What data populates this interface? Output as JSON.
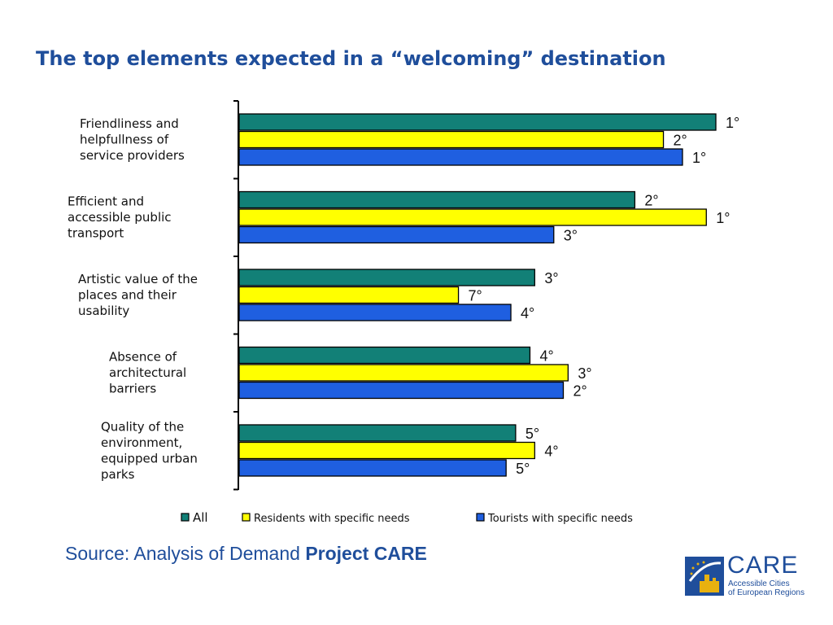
{
  "slide": {
    "title": "The top elements expected in a “welcoming” destination",
    "source_prefix": "Source: Analysis of Demand ",
    "source_bold": "Project CARE"
  },
  "logo": {
    "word": "CARE",
    "subtitle": "Accessible Cities\nof European Regions",
    "colors": {
      "blue": "#1f4e9b",
      "gold": "#e8b10f"
    }
  },
  "chart_data": {
    "type": "bar",
    "orientation": "horizontal",
    "categories": [
      [
        "Friendliness and",
        "helpfullness of",
        "service providers"
      ],
      [
        "Efficient and",
        "accessible public",
        "transport"
      ],
      [
        "Artistic value of the",
        "places and their",
        "usability"
      ],
      [
        "Absence of",
        "architectural",
        "barriers"
      ],
      [
        "Quality of the",
        "environment,",
        "equipped urban",
        "parks"
      ]
    ],
    "series": [
      {
        "name": "All",
        "color": "#128077",
        "values": [
          100,
          83,
          62,
          61,
          58
        ],
        "labels": [
          "1°",
          "2°",
          "3°",
          "4°",
          "5°"
        ]
      },
      {
        "name": "Residents with specific needs",
        "color": "#ffff00",
        "values": [
          89,
          98,
          46,
          69,
          62
        ],
        "labels": [
          "2°",
          "1°",
          "7°",
          "3°",
          "4°"
        ]
      },
      {
        "name": "Tourists with specific needs",
        "color": "#1f5fe0",
        "values": [
          93,
          66,
          57,
          68,
          56
        ],
        "labels": [
          "1°",
          "3°",
          "4°",
          "2°",
          "5°"
        ]
      }
    ],
    "xlim": [
      0,
      100
    ],
    "grid": false,
    "legend_position": "bottom"
  }
}
